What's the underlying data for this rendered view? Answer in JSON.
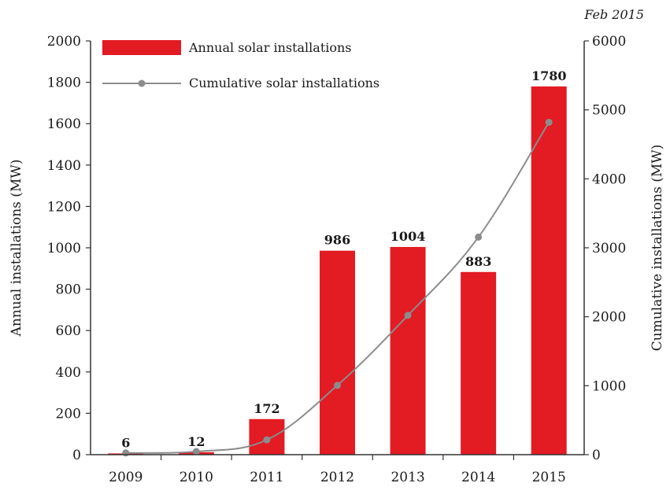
{
  "chart_data": {
    "type": "bar",
    "categories": [
      "2009",
      "2010",
      "2011",
      "2012",
      "2013",
      "2014",
      "2015"
    ],
    "series": [
      {
        "name": "Annual solar installations",
        "type": "bar",
        "axis": "left",
        "values": [
          6,
          12,
          172,
          986,
          1004,
          883,
          1780
        ],
        "data_labels": [
          "6",
          "12",
          "172",
          "986",
          "1004",
          "883",
          "1780"
        ]
      },
      {
        "name": "Cumulative solar installations",
        "type": "line",
        "axis": "right",
        "values": [
          25,
          45,
          215,
          1005,
          2020,
          3155,
          4820
        ]
      }
    ],
    "ylabel": "Annual installations (MW)",
    "y2label": "Cumulative installations (MW)",
    "xlabel": "",
    "ylim": [
      0,
      2000
    ],
    "y2lim": [
      0,
      6000
    ],
    "yticks": [
      "0",
      "200",
      "400",
      "600",
      "800",
      "1000",
      "1200",
      "1400",
      "1600",
      "1800",
      "2000"
    ],
    "y2ticks": [
      "0",
      "1000",
      "2000",
      "3000",
      "4000",
      "5000",
      "6000"
    ],
    "note": "Feb 2015",
    "legend_position": "top-left",
    "grid": false,
    "colors": {
      "bar": "#e31b23",
      "line": "#8c8c8c",
      "axis": "#333333"
    }
  }
}
